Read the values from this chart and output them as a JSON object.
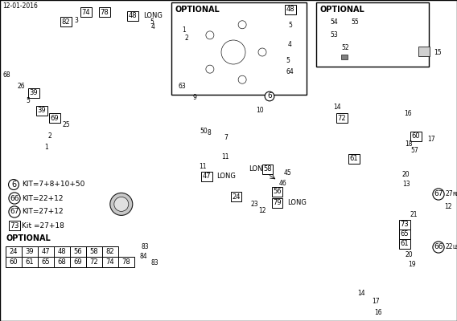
{
  "date": "12-01-2016",
  "bg_color": "#ffffff",
  "lc": "#1a1a1a",
  "optional_grid_row1": [
    "24",
    "39",
    "47",
    "48",
    "56",
    "58",
    "82"
  ],
  "optional_grid_row2": [
    "60",
    "61",
    "65",
    "68",
    "69",
    "72",
    "74",
    "78"
  ],
  "figsize": [
    5.68,
    4.0
  ],
  "dpi": 100
}
